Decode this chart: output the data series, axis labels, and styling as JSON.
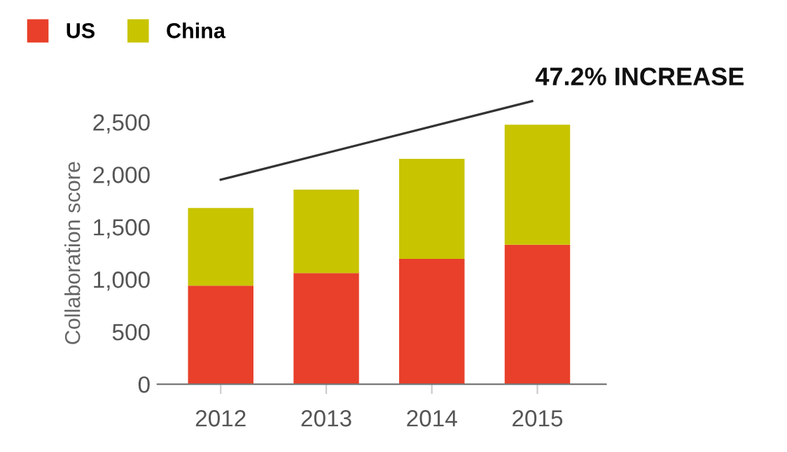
{
  "chart_data": {
    "type": "bar",
    "stacked": true,
    "categories": [
      "2012",
      "2013",
      "2014",
      "2015"
    ],
    "series": [
      {
        "name": "US",
        "color": "#e8402a",
        "values": [
          940,
          1060,
          1195,
          1330
        ]
      },
      {
        "name": "China",
        "color": "#c8c400",
        "values": [
          740,
          795,
          955,
          1145
        ]
      }
    ],
    "ylabel": "Collaboration score",
    "ylim": [
      0,
      2500
    ],
    "yticks": [
      0,
      {
        "value": 500,
        "label": "500"
      },
      {
        "value": 1000,
        "label": "1,000"
      },
      {
        "value": 1500,
        "label": "1,500"
      },
      {
        "value": 2000,
        "label": "2,000"
      },
      {
        "value": 2500,
        "label": "2,500"
      }
    ],
    "annotations": [
      "47.2% INCREASE"
    ],
    "legend": "top left",
    "grid": false
  }
}
